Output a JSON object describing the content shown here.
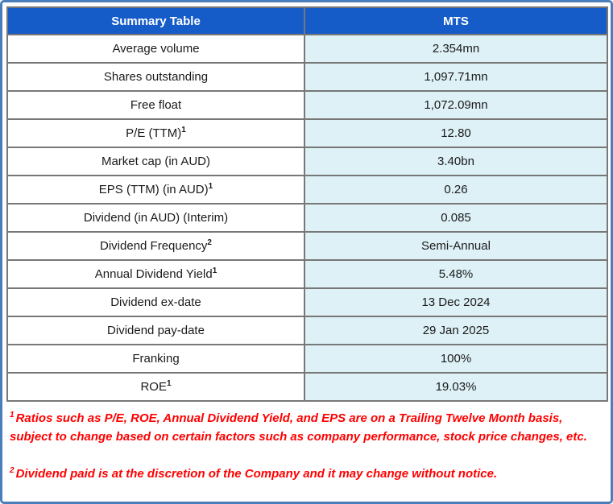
{
  "chart_data": {
    "type": "table",
    "title": "Summary Table",
    "columns": [
      "Summary Table",
      "MTS"
    ],
    "rows": [
      {
        "metric": "Average volume",
        "sup": "",
        "value": "2.354mn"
      },
      {
        "metric": "Shares outstanding",
        "sup": "",
        "value": "1,097.71mn"
      },
      {
        "metric": "Free float",
        "sup": "",
        "value": "1,072.09mn"
      },
      {
        "metric": "P/E (TTM)",
        "sup": "1",
        "value": "12.80"
      },
      {
        "metric": "Market cap (in AUD)",
        "sup": "",
        "value": "3.40bn"
      },
      {
        "metric": "EPS (TTM) (in AUD)",
        "sup": "1",
        "value": "0.26"
      },
      {
        "metric": "Dividend (in AUD) (Interim)",
        "sup": "",
        "value": "0.085"
      },
      {
        "metric": "Dividend Frequency",
        "sup": "2",
        "value": "Semi-Annual"
      },
      {
        "metric": "Annual Dividend Yield",
        "sup": "1",
        "value": "5.48%"
      },
      {
        "metric": "Dividend ex-date",
        "sup": "",
        "value": "13 Dec 2024"
      },
      {
        "metric": "Dividend pay-date",
        "sup": "",
        "value": "29 Jan 2025"
      },
      {
        "metric": "Franking",
        "sup": "",
        "value": "100%"
      },
      {
        "metric": "ROE",
        "sup": "1",
        "value": "19.03%"
      }
    ],
    "footnotes": [
      {
        "sup": "1",
        "text": "Ratios such as P/E, ROE, Annual Dividend Yield, and EPS are on a Trailing Twelve Month basis, subject to change based on certain factors such as company performance, stock price changes, etc."
      },
      {
        "sup": "2",
        "text": "Dividend paid is at the discretion of the Company and it may change without notice."
      }
    ],
    "layout": {
      "grid": true,
      "legend": "none"
    }
  },
  "colors": {
    "header_bg": "#155CC9",
    "header_text": "#FFFFFF",
    "value_cell_bg": "#DEF1F6",
    "metric_cell_bg": "#FFFFFF",
    "grid_border": "#777777",
    "frame_border": "#4A7EBB",
    "footnote_text": "#FF0000",
    "body_text": "#1A1A1A"
  }
}
